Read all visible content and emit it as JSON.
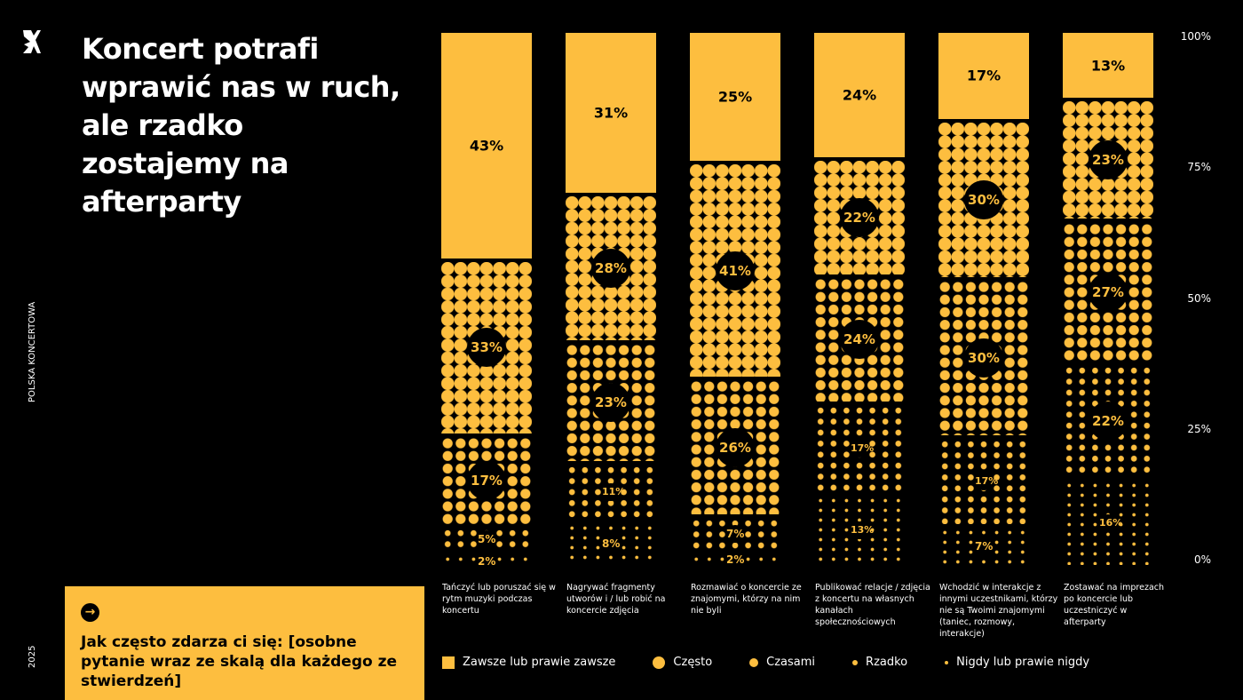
{
  "title": "Koncert potrafi wprawić nas w ruch, ale rzadko zostajemy na afterparty",
  "side_brand": "POLSKA KONCERTOWA",
  "side_year": "2025",
  "question": "Jak często zdarza ci się: [osobne pytanie wraz ze skalą dla każdego ze stwierdzeń]",
  "colors": {
    "accent": "#FDBE3F",
    "background": "#000000"
  },
  "icons": {
    "logo": "brand-logo",
    "question": "arrow-right-circle-icon"
  },
  "chart_data": {
    "type": "bar",
    "stacked": true,
    "categories": [
      "Tańczyć lub poruszać się w rytm muzyki podczas koncertu",
      "Nagrywać fragmenty utworów i / lub robić na koncercie zdjęcia",
      "Rozmawiać o koncercie ze znajomymi, którzy na nim nie byli",
      "Publikować relacje / zdjęcia z koncertu na własnych kanałach społecznościowych",
      "Wchodzić w interakcje z innymi uczestnikami, którzy nie są Twoimi znajomymi (taniec, rozmowy, interakcje)",
      "Zostawać na imprezach po koncercie lub uczestniczyć w afterparty"
    ],
    "series": [
      {
        "name": "Zawsze lub prawie zawsze",
        "values": [
          43,
          31,
          25,
          24,
          17,
          13
        ],
        "labels": [
          "43%",
          "31%",
          "25%",
          "24%",
          "17%",
          "13%"
        ]
      },
      {
        "name": "Często",
        "values": [
          33,
          28,
          41,
          22,
          30,
          23
        ],
        "labels": [
          "33%",
          "28%",
          "41%",
          "22%",
          "30%",
          "23%"
        ]
      },
      {
        "name": "Czasami",
        "values": [
          17,
          23,
          26,
          24,
          30,
          27
        ],
        "labels": [
          "17%",
          "23%",
          "26%",
          "24%",
          "30%",
          "27%"
        ]
      },
      {
        "name": "Rzadko",
        "values": [
          5,
          11,
          7,
          17,
          17,
          22
        ],
        "labels": [
          "5%",
          "11%",
          "7%",
          "17%",
          "17%",
          "22%"
        ]
      },
      {
        "name": "Nigdy lub prawie nigdy",
        "values": [
          2,
          8,
          2,
          13,
          7,
          16
        ],
        "labels": [
          "2%",
          "8%",
          "2%",
          "13%",
          "7%",
          "16%"
        ]
      }
    ],
    "yticks": [
      "0%",
      "25%",
      "50%",
      "75%",
      "100%"
    ],
    "ylim": [
      0,
      100
    ],
    "legend_position": "bottom"
  }
}
